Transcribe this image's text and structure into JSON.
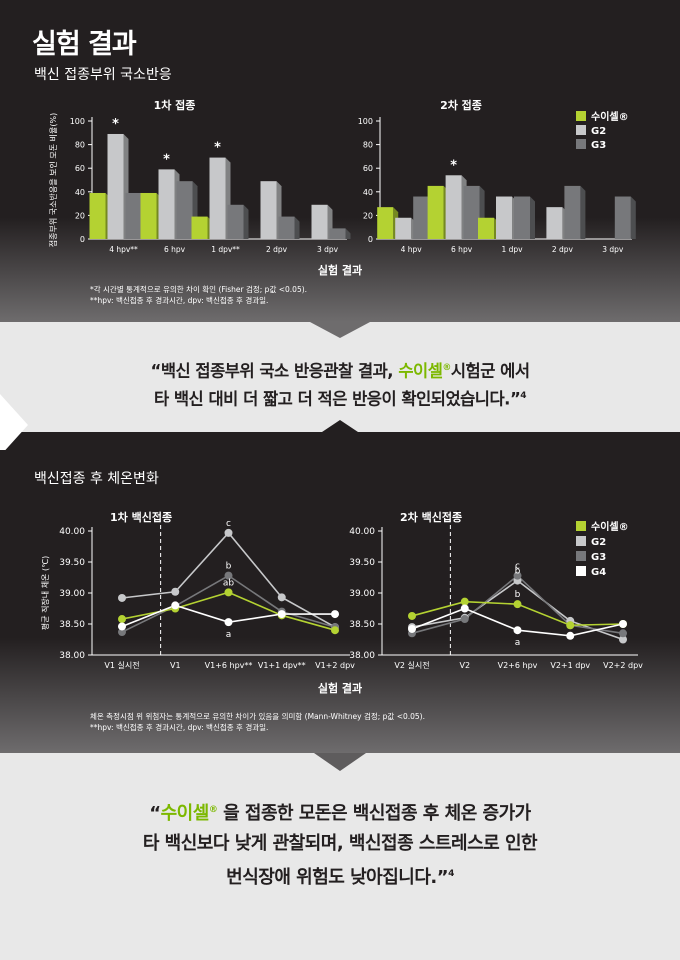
{
  "page": {
    "title": "실험 결과",
    "section1_title": "백신 접종부위 국소반응",
    "section2_title": "백신접종 후 체온변화"
  },
  "colors": {
    "suisel": "#b4d232",
    "g2": "#c7c8ca",
    "g3": "#77787b",
    "g4": "#ffffff",
    "accent": "#7cb800"
  },
  "legend": {
    "local": [
      {
        "label": "수이셀®",
        "color": "#b4d232"
      },
      {
        "label": "G2",
        "color": "#c7c8ca"
      },
      {
        "label": "G3",
        "color": "#77787b"
      }
    ],
    "temp": [
      {
        "label": "수이셀®",
        "color": "#b4d232"
      },
      {
        "label": "G2",
        "color": "#c7c8ca"
      },
      {
        "label": "G3",
        "color": "#77787b"
      },
      {
        "label": "G4",
        "color": "#ffffff"
      }
    ]
  },
  "notes": {
    "local_1": "*각 시간별 통계적으로 유의한 차이 확인 (Fisher 검정; p값 <0.05).",
    "local_2": "**hpv: 백신접종 후 경과시간, dpv: 백신접종 후 경과일.",
    "temp_1": "체온 측정시점 위 위첨자는 통계적으로 유의한 차이가 있음을 의미함 (Mann-Whitney 검정; p값 <0.05).",
    "temp_2": "**hpv: 백신접종 후 경과시간, dpv: 백신접종 후 경과일."
  },
  "quote1": {
    "line1_pre": "“백신 접종부위 국소 반응관찰 결과, ",
    "line1_brand": "수이셀",
    "line1_reg": "®",
    "line1_post": "시험군 에서",
    "line2": "타 백신 대비 더 짧고 더 적은 반응이 확인되었습니다.”",
    "ref": "4"
  },
  "quote2": {
    "line1_open": "“",
    "line1_brand": "수이셀",
    "line1_reg": "®",
    "line1_post": " 을 접종한 모돈은 백신접종 후 체온 증가가",
    "line2": "타 백신보다 낮게 관찰되며, 백신접종 스트레스로 인한",
    "line3": "번식장애 위험도 낮아집니다.”",
    "ref": "4"
  },
  "chart_data": [
    {
      "type": "bar",
      "title": "1차 접종",
      "xlabel": "실험 결과",
      "ylabel": "접종부위 국소반응을 보인 모돈 비율(%)",
      "ylim": [
        0,
        100
      ],
      "yticks": [
        "0",
        "20",
        "40",
        "60",
        "80",
        "100"
      ],
      "categories": [
        "4 hpv**",
        "6 hpv",
        "1 dpv**",
        "2 dpv",
        "3 dpv"
      ],
      "series": [
        {
          "name": "수이셀®",
          "values": [
            39,
            39,
            19,
            0,
            0
          ]
        },
        {
          "name": "G2",
          "values": [
            89,
            59,
            69,
            49,
            29
          ]
        },
        {
          "name": "G3",
          "values": [
            39,
            49,
            29,
            19,
            9
          ]
        }
      ],
      "stars": [
        {
          "series": 1,
          "index": 0,
          "label": "*"
        },
        {
          "series": 1,
          "index": 1,
          "label": "*"
        },
        {
          "series": 1,
          "index": 2,
          "label": "*"
        }
      ]
    },
    {
      "type": "bar",
      "title": "2차 접종",
      "xlabel": "실험 결과",
      "ylim": [
        0,
        100
      ],
      "yticks": [
        "0",
        "20",
        "40",
        "60",
        "80",
        "100"
      ],
      "categories": [
        "4 hpv",
        "6 hpv",
        "1 dpv",
        "2 dpv",
        "3 dpv"
      ],
      "series": [
        {
          "name": "수이셀®",
          "values": [
            27,
            45,
            18,
            0,
            0
          ]
        },
        {
          "name": "G2",
          "values": [
            18,
            54,
            36,
            27,
            0
          ]
        },
        {
          "name": "G3",
          "values": [
            36,
            45,
            36,
            45,
            36
          ]
        }
      ],
      "stars": [
        {
          "series": 1,
          "index": 1,
          "label": "*"
        }
      ]
    },
    {
      "type": "line",
      "title": "1차 백신접종",
      "xlabel": "실험 결과",
      "ylabel": "평균 직장내 체온 (℃)",
      "ylim": [
        38.0,
        40.0
      ],
      "yticks": [
        "38.00",
        "38.50",
        "39.00",
        "39.50",
        "40.00"
      ],
      "categories": [
        "V1 실시전",
        "V1",
        "V1+6 hpv**",
        "V1+1 dpv**",
        "V1+2 dpv"
      ],
      "series": [
        {
          "name": "수이셀®",
          "values": [
            38.58,
            38.75,
            39.01,
            38.64,
            38.4
          ]
        },
        {
          "name": "G2",
          "values": [
            38.92,
            39.02,
            39.97,
            38.93,
            38.45
          ]
        },
        {
          "name": "G3",
          "values": [
            38.37,
            38.79,
            39.28,
            38.7,
            38.45
          ]
        },
        {
          "name": "G4",
          "values": [
            38.46,
            38.8,
            38.53,
            38.66,
            38.66
          ]
        }
      ],
      "annotations": [
        {
          "category": "V1+6 hpv**",
          "text": "c",
          "series": "G2"
        },
        {
          "category": "V1+6 hpv**",
          "text": "b",
          "series": "G3"
        },
        {
          "category": "V1+6 hpv**",
          "text": "ab",
          "series": "수이셀®"
        },
        {
          "category": "V1+6 hpv**",
          "text": "a",
          "series": "G4"
        }
      ]
    },
    {
      "type": "line",
      "title": "2차 백신접종",
      "xlabel": "실험 결과",
      "ylim": [
        38.0,
        40.0
      ],
      "yticks": [
        "38.00",
        "38.50",
        "39.00",
        "39.50",
        "40.00"
      ],
      "categories": [
        "V2 실시전",
        "V2",
        "V2+6 hpv",
        "V2+1 dpv",
        "V2+2 dpv"
      ],
      "series": [
        {
          "name": "수이셀®",
          "values": [
            38.63,
            38.86,
            38.82,
            38.48,
            38.5
          ]
        },
        {
          "name": "G2",
          "values": [
            38.45,
            38.6,
            39.2,
            38.55,
            38.25
          ]
        },
        {
          "name": "G3",
          "values": [
            38.35,
            38.58,
            39.28,
            38.48,
            38.35
          ]
        },
        {
          "name": "G4",
          "values": [
            38.42,
            38.75,
            38.4,
            38.31,
            38.5
          ]
        }
      ],
      "annotations": [
        {
          "category": "V2+6 hpv",
          "text": "c",
          "series": "G3"
        },
        {
          "category": "V2+6 hpv",
          "text": "b",
          "series": "G2"
        },
        {
          "category": "V2+6 hpv",
          "text": "b",
          "series": "수이셀®"
        },
        {
          "category": "V2+6 hpv",
          "text": "a",
          "series": "G4"
        }
      ]
    }
  ]
}
